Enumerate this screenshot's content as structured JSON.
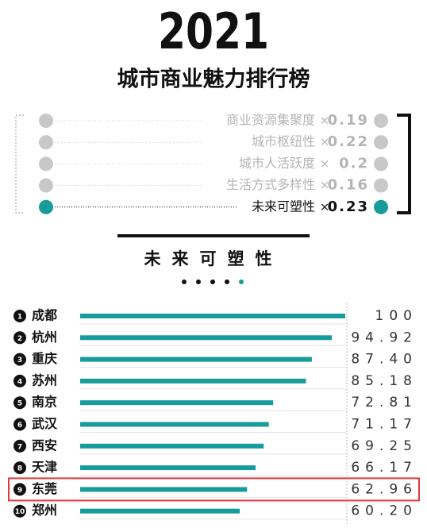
{
  "header": {
    "year": "2021",
    "title": "城市商业魅力排行榜"
  },
  "legend": {
    "operator": "×",
    "active": 4,
    "active_color": "#179b9b",
    "inactive_color": "#c8c8c8",
    "items": [
      {
        "name": "商业资源集聚度",
        "weight": 0.19
      },
      {
        "name": "城市枢纽性",
        "weight": 0.22
      },
      {
        "name": "城市人活跃度",
        "weight": 0.2
      },
      {
        "name": "生活方式多样性",
        "weight": 0.16
      },
      {
        "name": "未来可塑性",
        "weight": 0.23
      }
    ]
  },
  "chart_data": {
    "type": "bar",
    "orientation": "horizontal",
    "title": "未来可塑性",
    "categories": [
      "成都",
      "杭州",
      "重庆",
      "苏州",
      "南京",
      "武汉",
      "西安",
      "天津",
      "东莞",
      "郑州"
    ],
    "ranks": [
      1,
      2,
      3,
      4,
      5,
      6,
      7,
      8,
      9,
      10
    ],
    "values": [
      100,
      94.92,
      87.4,
      85.18,
      72.81,
      71.17,
      69.25,
      66.17,
      62.96,
      60.2
    ],
    "value_labels": [
      "100",
      "94.92",
      "87.40",
      "85.18",
      "72.81",
      "71.17",
      "69.25",
      "66.17",
      "62.96",
      "60.20"
    ],
    "xlim": [
      0,
      100
    ],
    "color": "#179b9b",
    "highlight": "东莞",
    "highlight_color": "#e0393e"
  }
}
